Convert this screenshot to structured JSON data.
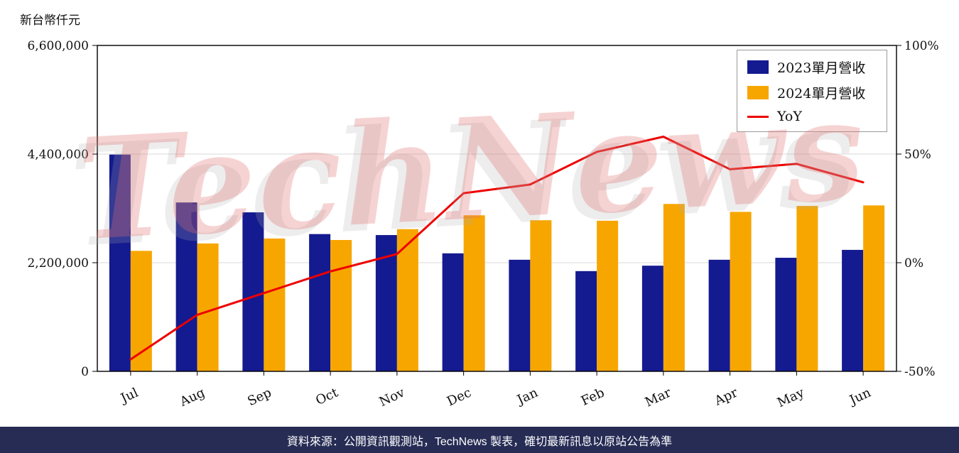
{
  "axis_title_left": "新台幣仟元",
  "watermark": "TechNews",
  "footer": {
    "text": "資料來源：公開資訊觀測站，TechNews 製表，確切最新訊息以原站公告為準"
  },
  "legend": [
    {
      "label": "2023單月營收",
      "color": "#141a8f",
      "type": "box"
    },
    {
      "label": "2024單月營收",
      "color": "#f7a600",
      "type": "box"
    },
    {
      "label": "YoY",
      "color": "#ee0000",
      "type": "line"
    }
  ],
  "chart_data": {
    "type": "bar",
    "subtype": "grouped-bars-with-line",
    "title": "",
    "xlabel": "",
    "ylabel": "新台幣仟元",
    "categories": [
      "Jul",
      "Aug",
      "Sep",
      "Oct",
      "Nov",
      "Dec",
      "Jan",
      "Feb",
      "Mar",
      "Apr",
      "May",
      "Jun"
    ],
    "series": [
      {
        "name": "2023單月營收",
        "type": "bar",
        "axis": "left",
        "color": "#141a8f",
        "values": [
          4390000,
          3420000,
          3220000,
          2780000,
          2760000,
          2390000,
          2260000,
          2030000,
          2140000,
          2260000,
          2300000,
          2460000
        ]
      },
      {
        "name": "2024單月營收",
        "type": "bar",
        "axis": "left",
        "color": "#f7a600",
        "values": [
          2440000,
          2590000,
          2690000,
          2660000,
          2880000,
          3160000,
          3060000,
          3050000,
          3390000,
          3230000,
          3350000,
          3360000
        ]
      },
      {
        "name": "YoY",
        "type": "line",
        "axis": "right",
        "color": "#ee0000",
        "values": [
          -44.5,
          -24.0,
          -14.0,
          -4.0,
          4.0,
          32.0,
          36.0,
          51.0,
          58.0,
          43.0,
          45.5,
          37.0
        ]
      }
    ],
    "left_axis": {
      "ticks": [
        0,
        2200000,
        4400000,
        6600000
      ],
      "min": 0,
      "max": 6600000,
      "tick_labels": [
        "0",
        "2,200,000",
        "4,400,000",
        "6,600,000"
      ]
    },
    "right_axis": {
      "ticks_percent": [
        -50,
        0,
        50,
        100
      ],
      "min": -50,
      "max": 100,
      "tick_labels": [
        "-50%",
        "0%",
        "50%",
        "100%"
      ]
    },
    "grid": "horizontal-light-gray",
    "legend_position": "top-right-inside"
  }
}
